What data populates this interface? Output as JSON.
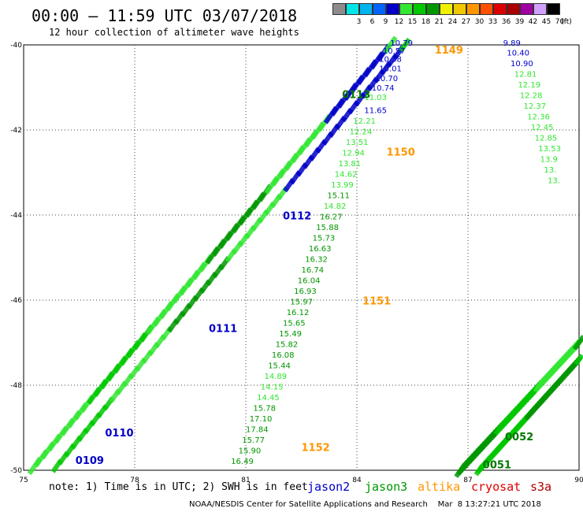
{
  "header": {
    "title": "00:00 — 11:59 UTC 03/07/2018",
    "subtitle": "12 hour collection of altimeter wave heights"
  },
  "legend": {
    "unit": "(ft)",
    "bins": [
      {
        "label": "",
        "color": "#8c8c8c"
      },
      {
        "label": "3",
        "color": "#00e6e6"
      },
      {
        "label": "6",
        "color": "#00b4f0"
      },
      {
        "label": "9",
        "color": "#0064ff"
      },
      {
        "label": "12",
        "color": "#0000c8"
      },
      {
        "label": "15",
        "color": "#32e632"
      },
      {
        "label": "18",
        "color": "#00c800"
      },
      {
        "label": "21",
        "color": "#009600"
      },
      {
        "label": "24",
        "color": "#f0f000"
      },
      {
        "label": "27",
        "color": "#f0c800"
      },
      {
        "label": "30",
        "color": "#ff9600"
      },
      {
        "label": "33",
        "color": "#ff5000"
      },
      {
        "label": "36",
        "color": "#dc0000"
      },
      {
        "label": "39",
        "color": "#aa0000"
      },
      {
        "label": "42",
        "color": "#a000a0"
      },
      {
        "label": "45",
        "color": "#d2a0ff"
      },
      {
        "label": "70",
        "color": "#000000"
      }
    ]
  },
  "notes": {
    "note": "note: 1) Time is in UTC; 2) SWH is in feet",
    "jason2": "jason2",
    "jason3": "jason3",
    "altika": "altika",
    "cryosat": "cryosat",
    "s3a": "s3a"
  },
  "footer": "NOAA/NESDIS Center for Satellite Applications and Research    Mar  8 13:27:21 UTC 2018",
  "map": {
    "lon_range": [
      75,
      90
    ],
    "lat_range": [
      -50,
      -40
    ],
    "x_ticks": [
      "75",
      "78",
      "81",
      "84",
      "87",
      "90"
    ],
    "y_ticks": [
      "-40",
      "-42",
      "-44",
      "-46",
      "-48",
      "-50"
    ],
    "passes": [
      {
        "label": "0110",
        "lon": 77.2,
        "lat": -49.2,
        "color": "#0000c8"
      },
      {
        "label": "0109",
        "lon": 76.4,
        "lat": -49.85,
        "color": "#0000c8"
      },
      {
        "label": "0111",
        "lon": 80.0,
        "lat": -46.75,
        "color": "#0000c8"
      },
      {
        "label": "0112",
        "lon": 82.0,
        "lat": -44.1,
        "color": "#0000c8"
      },
      {
        "label": "0113",
        "lon": 83.6,
        "lat": -41.25,
        "color": "#007800"
      },
      {
        "label": "1149",
        "lon": 86.1,
        "lat": -40.2,
        "color": "#ff9600"
      },
      {
        "label": "1150",
        "lon": 84.8,
        "lat": -42.6,
        "color": "#ff9600"
      },
      {
        "label": "1151",
        "lon": 84.15,
        "lat": -46.1,
        "color": "#ff9600"
      },
      {
        "label": "1152",
        "lon": 82.5,
        "lat": -49.55,
        "color": "#ff9600"
      },
      {
        "label": "0052",
        "lon": 88.0,
        "lat": -49.3,
        "color": "#007800"
      },
      {
        "label": "0051",
        "lon": 87.4,
        "lat": -49.95,
        "color": "#007800"
      }
    ],
    "altika_1149": [
      {
        "v": "10.79",
        "lon": 84.9,
        "lat": -40.02,
        "c": "#0000c8"
      },
      {
        "v": "10.57",
        "lon": 84.7,
        "lat": -40.2,
        "c": "#0000c8"
      },
      {
        "v": "10.38",
        "lon": 84.6,
        "lat": -40.4,
        "c": "#0000c8"
      },
      {
        "v": "10.01",
        "lon": 84.6,
        "lat": -40.62,
        "c": "#0000c8"
      },
      {
        "v": "10.70",
        "lon": 84.5,
        "lat": -40.85,
        "c": "#0000c8"
      },
      {
        "v": "10.74",
        "lon": 84.4,
        "lat": -41.07,
        "c": "#0000c8"
      },
      {
        "v": "11.03",
        "lon": 84.2,
        "lat": -41.3,
        "c": "#32e632"
      },
      {
        "v": "11.65",
        "lon": 84.2,
        "lat": -41.6,
        "c": "#0000c8"
      },
      {
        "v": "12.21",
        "lon": 83.9,
        "lat": -41.85,
        "c": "#32e632"
      },
      {
        "v": "12.24",
        "lon": 83.8,
        "lat": -42.1,
        "c": "#32e632"
      },
      {
        "v": "13.51",
        "lon": 83.7,
        "lat": -42.35,
        "c": "#32e632"
      },
      {
        "v": "12.94",
        "lon": 83.6,
        "lat": -42.6,
        "c": "#32e632"
      },
      {
        "v": "13.81",
        "lon": 83.5,
        "lat": -42.85,
        "c": "#32e632"
      },
      {
        "v": "14.62",
        "lon": 83.4,
        "lat": -43.1,
        "c": "#32e632"
      },
      {
        "v": "13.99",
        "lon": 83.3,
        "lat": -43.35,
        "c": "#32e632"
      },
      {
        "v": "15.11",
        "lon": 83.2,
        "lat": -43.6,
        "c": "#009600"
      },
      {
        "v": "14.82",
        "lon": 83.1,
        "lat": -43.85,
        "c": "#32e632"
      },
      {
        "v": "16.27",
        "lon": 83.0,
        "lat": -44.1,
        "c": "#009600"
      },
      {
        "v": "15.88",
        "lon": 82.9,
        "lat": -44.35,
        "c": "#009600"
      },
      {
        "v": "15.73",
        "lon": 82.8,
        "lat": -44.6,
        "c": "#009600"
      },
      {
        "v": "16.63",
        "lon": 82.7,
        "lat": -44.85,
        "c": "#009600"
      },
      {
        "v": "16.32",
        "lon": 82.6,
        "lat": -45.1,
        "c": "#009600"
      },
      {
        "v": "16.74",
        "lon": 82.5,
        "lat": -45.35,
        "c": "#009600"
      },
      {
        "v": "16.04",
        "lon": 82.4,
        "lat": -45.6,
        "c": "#009600"
      },
      {
        "v": "16.93",
        "lon": 82.3,
        "lat": -45.85,
        "c": "#009600"
      },
      {
        "v": "15.97",
        "lon": 82.2,
        "lat": -46.1,
        "c": "#009600"
      },
      {
        "v": "16.12",
        "lon": 82.1,
        "lat": -46.35,
        "c": "#009600"
      },
      {
        "v": "15.65",
        "lon": 82.0,
        "lat": -46.6,
        "c": "#009600"
      },
      {
        "v": "15.49",
        "lon": 81.9,
        "lat": -46.85,
        "c": "#009600"
      },
      {
        "v": "15.82",
        "lon": 81.8,
        "lat": -47.1,
        "c": "#009600"
      },
      {
        "v": "16.08",
        "lon": 81.7,
        "lat": -47.35,
        "c": "#009600"
      },
      {
        "v": "15.44",
        "lon": 81.6,
        "lat": -47.6,
        "c": "#009600"
      },
      {
        "v": "14.89",
        "lon": 81.5,
        "lat": -47.85,
        "c": "#32e632"
      },
      {
        "v": "14.15",
        "lon": 81.4,
        "lat": -48.1,
        "c": "#32e632"
      },
      {
        "v": "14.45",
        "lon": 81.3,
        "lat": -48.35,
        "c": "#32e632"
      },
      {
        "v": "15.78",
        "lon": 81.2,
        "lat": -48.6,
        "c": "#009600"
      },
      {
        "v": "17.10",
        "lon": 81.1,
        "lat": -48.85,
        "c": "#009600"
      },
      {
        "v": "17.84",
        "lon": 81.0,
        "lat": -49.1,
        "c": "#009600"
      },
      {
        "v": "15.77",
        "lon": 80.9,
        "lat": -49.35,
        "c": "#009600"
      },
      {
        "v": "15.90",
        "lon": 80.8,
        "lat": -49.6,
        "c": "#009600"
      },
      {
        "v": "16.49",
        "lon": 80.6,
        "lat": -49.85,
        "c": "#009600"
      }
    ],
    "right_track": [
      {
        "v": "9.89",
        "lon": 87.95,
        "lat": -40.02,
        "c": "#0000c8"
      },
      {
        "v": "10.40",
        "lon": 88.05,
        "lat": -40.25,
        "c": "#0000c8"
      },
      {
        "v": "10.90",
        "lon": 88.15,
        "lat": -40.5,
        "c": "#0000c8"
      },
      {
        "v": "12.81",
        "lon": 88.25,
        "lat": -40.75,
        "c": "#32e632"
      },
      {
        "v": "12.19",
        "lon": 88.35,
        "lat": -41.0,
        "c": "#32e632"
      },
      {
        "v": "12.28",
        "lon": 88.4,
        "lat": -41.25,
        "c": "#32e632"
      },
      {
        "v": "12.37",
        "lon": 88.5,
        "lat": -41.5,
        "c": "#32e632"
      },
      {
        "v": "12.36",
        "lon": 88.6,
        "lat": -41.75,
        "c": "#32e632"
      },
      {
        "v": "12.45",
        "lon": 88.7,
        "lat": -42.0,
        "c": "#32e632"
      },
      {
        "v": "12.85",
        "lon": 88.8,
        "lat": -42.25,
        "c": "#32e632"
      },
      {
        "v": "13.53",
        "lon": 88.9,
        "lat": -42.5,
        "c": "#32e632"
      },
      {
        "v": "13.9",
        "lon": 88.95,
        "lat": -42.75,
        "c": "#32e632"
      },
      {
        "v": "13.",
        "lon": 89.05,
        "lat": -43.0,
        "c": "#32e632"
      },
      {
        "v": "13.",
        "lon": 89.15,
        "lat": -43.25,
        "c": "#32e632"
      }
    ]
  }
}
